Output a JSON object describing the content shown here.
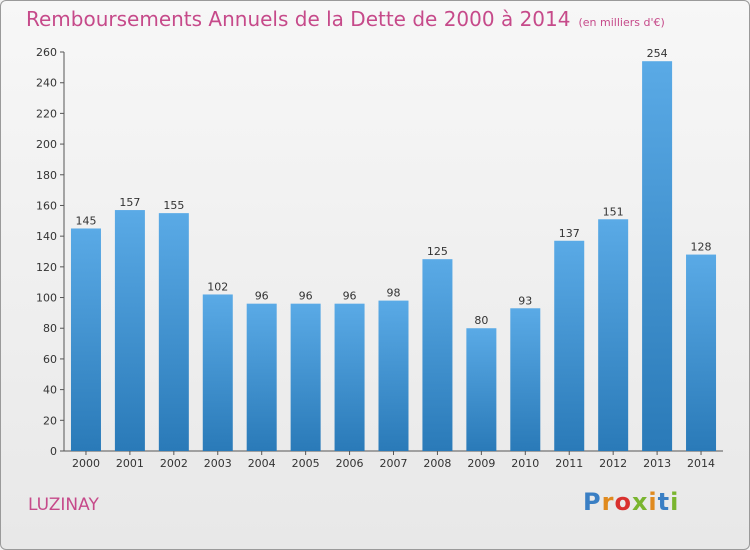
{
  "header": {
    "title": "Remboursements Annuels de la Dette de 2000 à 2014",
    "subtitle": "(en milliers d'€)"
  },
  "footer": {
    "commune": "LUZINAY",
    "logo_text": "Proxiti"
  },
  "chart_data": {
    "type": "bar",
    "title": "Remboursements Annuels de la Dette de 2000 à 2014",
    "subtitle": "(en milliers d'€)",
    "xlabel": "",
    "ylabel": "",
    "categories": [
      "2000",
      "2001",
      "2002",
      "2003",
      "2004",
      "2005",
      "2006",
      "2007",
      "2008",
      "2009",
      "2010",
      "2011",
      "2012",
      "2013",
      "2014"
    ],
    "values": [
      145,
      157,
      155,
      102,
      96,
      96,
      96,
      98,
      125,
      80,
      93,
      137,
      151,
      254,
      128
    ],
    "ylim": [
      0,
      260
    ],
    "yticks": [
      0,
      20,
      40,
      60,
      80,
      100,
      120,
      140,
      160,
      180,
      200,
      220,
      240,
      260
    ],
    "grid": false,
    "bar_color_top": "#5aaae6",
    "bar_color_bottom": "#2a7ab8"
  }
}
